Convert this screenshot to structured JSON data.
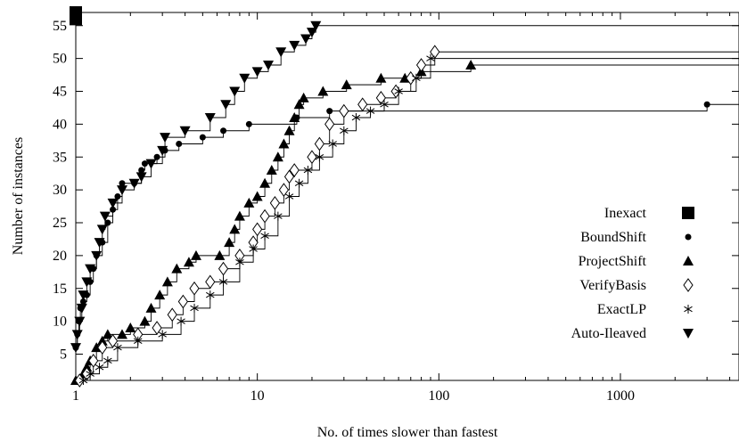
{
  "chart_data": {
    "type": "line",
    "xlabel": "No. of times slower than fastest",
    "ylabel": "Number of instances",
    "xscale": "log",
    "xlim": [
      1,
      4500
    ],
    "ylim": [
      1,
      57
    ],
    "xticks": [
      1,
      10,
      100,
      1000
    ],
    "xtick_labels": [
      "1",
      "10",
      "100",
      "1000"
    ],
    "yticks": [
      5,
      10,
      15,
      20,
      25,
      30,
      35,
      40,
      45,
      50,
      55
    ],
    "ytick_labels": [
      "5",
      "10",
      "15",
      "20",
      "25",
      "30",
      "35",
      "40",
      "45",
      "50",
      "55"
    ],
    "grid": false,
    "legend_position": "bottom-right",
    "series": [
      {
        "name": "Inexact",
        "marker": "square",
        "points": [
          [
            1,
            56
          ],
          [
            1,
            57
          ]
        ]
      },
      {
        "name": "BoundShift",
        "marker": "circle",
        "points": [
          [
            1,
            6
          ],
          [
            1.02,
            8
          ],
          [
            1.04,
            10
          ],
          [
            1.06,
            12
          ],
          [
            1.1,
            13
          ],
          [
            1.15,
            14
          ],
          [
            1.2,
            16
          ],
          [
            1.25,
            18
          ],
          [
            1.3,
            20
          ],
          [
            1.4,
            22
          ],
          [
            1.5,
            25
          ],
          [
            1.6,
            27
          ],
          [
            1.7,
            29
          ],
          [
            1.8,
            31
          ],
          [
            2.1,
            31
          ],
          [
            2.3,
            33
          ],
          [
            2.4,
            34
          ],
          [
            2.8,
            35
          ],
          [
            3.1,
            36
          ],
          [
            3.7,
            37
          ],
          [
            5,
            38
          ],
          [
            6.5,
            39
          ],
          [
            9,
            40
          ],
          [
            16.5,
            41
          ],
          [
            25,
            42
          ],
          [
            3000,
            43
          ]
        ]
      },
      {
        "name": "ProjectShift",
        "marker": "triangle",
        "points": [
          [
            1,
            1
          ],
          [
            1.1,
            2
          ],
          [
            1.15,
            3
          ],
          [
            1.2,
            4
          ],
          [
            1.3,
            6
          ],
          [
            1.4,
            7
          ],
          [
            1.5,
            8
          ],
          [
            1.8,
            8
          ],
          [
            2,
            9
          ],
          [
            2.4,
            10
          ],
          [
            2.6,
            12
          ],
          [
            2.9,
            14
          ],
          [
            3.2,
            16
          ],
          [
            3.6,
            18
          ],
          [
            4.2,
            19
          ],
          [
            4.6,
            20
          ],
          [
            6.2,
            20
          ],
          [
            7,
            22
          ],
          [
            7.5,
            24
          ],
          [
            8,
            26
          ],
          [
            9,
            28
          ],
          [
            10,
            29
          ],
          [
            11,
            31
          ],
          [
            12,
            33
          ],
          [
            13,
            35
          ],
          [
            14,
            37
          ],
          [
            15,
            39
          ],
          [
            16,
            41
          ],
          [
            17,
            43
          ],
          [
            18,
            44
          ],
          [
            23,
            45
          ],
          [
            31,
            46
          ],
          [
            48,
            47
          ],
          [
            65,
            47
          ],
          [
            80,
            48
          ],
          [
            150,
            49
          ]
        ]
      },
      {
        "name": "VerifyBasis",
        "marker": "diamond",
        "points": [
          [
            1.05,
            1
          ],
          [
            1.15,
            2
          ],
          [
            1.25,
            4
          ],
          [
            1.4,
            6
          ],
          [
            1.6,
            7
          ],
          [
            2.2,
            8
          ],
          [
            2.8,
            9
          ],
          [
            3.4,
            11
          ],
          [
            3.9,
            13
          ],
          [
            4.5,
            15
          ],
          [
            5.5,
            16
          ],
          [
            6.5,
            18
          ],
          [
            8,
            20
          ],
          [
            9.5,
            22
          ],
          [
            10,
            24
          ],
          [
            11,
            26
          ],
          [
            12.5,
            28
          ],
          [
            14,
            30
          ],
          [
            15,
            32
          ],
          [
            16,
            33
          ],
          [
            20,
            35
          ],
          [
            22,
            37
          ],
          [
            25,
            40
          ],
          [
            30,
            42
          ],
          [
            38,
            43
          ],
          [
            48,
            44
          ],
          [
            58,
            45
          ],
          [
            70,
            47
          ],
          [
            80,
            49
          ],
          [
            95,
            51
          ]
        ]
      },
      {
        "name": "ExactLP",
        "marker": "star",
        "points": [
          [
            1.1,
            1
          ],
          [
            1.2,
            2
          ],
          [
            1.35,
            3
          ],
          [
            1.5,
            4
          ],
          [
            1.7,
            6
          ],
          [
            2.2,
            7
          ],
          [
            3,
            8
          ],
          [
            3.8,
            10
          ],
          [
            4.5,
            12
          ],
          [
            5.5,
            14
          ],
          [
            6.5,
            16
          ],
          [
            8,
            19
          ],
          [
            9.5,
            21
          ],
          [
            11,
            23
          ],
          [
            13,
            26
          ],
          [
            15,
            29
          ],
          [
            17,
            31
          ],
          [
            19,
            33
          ],
          [
            22,
            35
          ],
          [
            26,
            37
          ],
          [
            30,
            39
          ],
          [
            35,
            41
          ],
          [
            42,
            42
          ],
          [
            50,
            43
          ],
          [
            60,
            45
          ],
          [
            75,
            47
          ],
          [
            90,
            50
          ]
        ]
      },
      {
        "name": "Auto-Ileaved",
        "marker": "triangle-down",
        "points": [
          [
            1,
            6
          ],
          [
            1.02,
            8
          ],
          [
            1.05,
            10
          ],
          [
            1.08,
            12
          ],
          [
            1.1,
            14
          ],
          [
            1.15,
            16
          ],
          [
            1.2,
            18
          ],
          [
            1.3,
            20
          ],
          [
            1.35,
            22
          ],
          [
            1.4,
            24
          ],
          [
            1.45,
            26
          ],
          [
            1.6,
            28
          ],
          [
            1.8,
            30
          ],
          [
            2.1,
            31
          ],
          [
            2.3,
            32
          ],
          [
            2.6,
            34
          ],
          [
            3,
            36
          ],
          [
            3.1,
            38
          ],
          [
            4,
            39
          ],
          [
            5.5,
            41
          ],
          [
            6.7,
            43
          ],
          [
            7.5,
            45
          ],
          [
            8.5,
            47
          ],
          [
            10,
            48
          ],
          [
            11.5,
            49
          ],
          [
            13.5,
            51
          ],
          [
            16,
            52
          ],
          [
            18.5,
            53
          ],
          [
            20,
            54
          ],
          [
            21,
            55
          ]
        ]
      }
    ]
  }
}
